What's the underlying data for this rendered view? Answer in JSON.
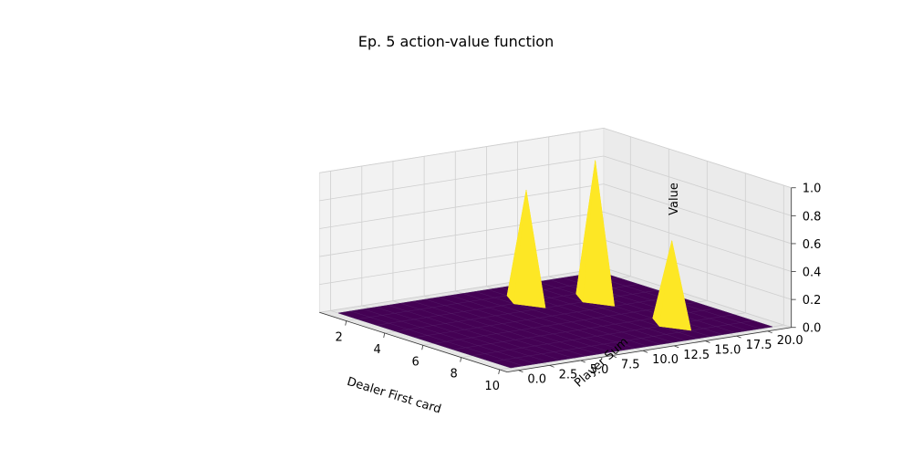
{
  "chart_data": {
    "type": "surface3d",
    "title": "Ep. 5 action-value function",
    "xlabel": "Dealer First card",
    "ylabel": "Player Sum",
    "zlabel": "Value",
    "x_ticks": [
      "2",
      "4",
      "6",
      "8",
      "10"
    ],
    "y_ticks": [
      "0.0",
      "2.5",
      "5.0",
      "7.5",
      "10.0",
      "12.5",
      "15.0",
      "17.5",
      "20.0"
    ],
    "z_ticks": [
      "0.0",
      "0.2",
      "0.4",
      "0.6",
      "0.8",
      "1.0"
    ],
    "xlim": [
      1,
      10
    ],
    "ylim": [
      0,
      21
    ],
    "zlim": [
      0,
      1
    ],
    "baseline_value": 0,
    "peaks": [
      {
        "dealer_first_card": 3,
        "player_sum": 12,
        "value": 0.8
      },
      {
        "dealer_first_card": 4,
        "player_sum": 16,
        "value": 1.0
      },
      {
        "dealer_first_card": 8,
        "player_sum": 16,
        "value": 0.6
      }
    ],
    "colormap": {
      "low": "#440154",
      "high": "#fde725"
    }
  }
}
